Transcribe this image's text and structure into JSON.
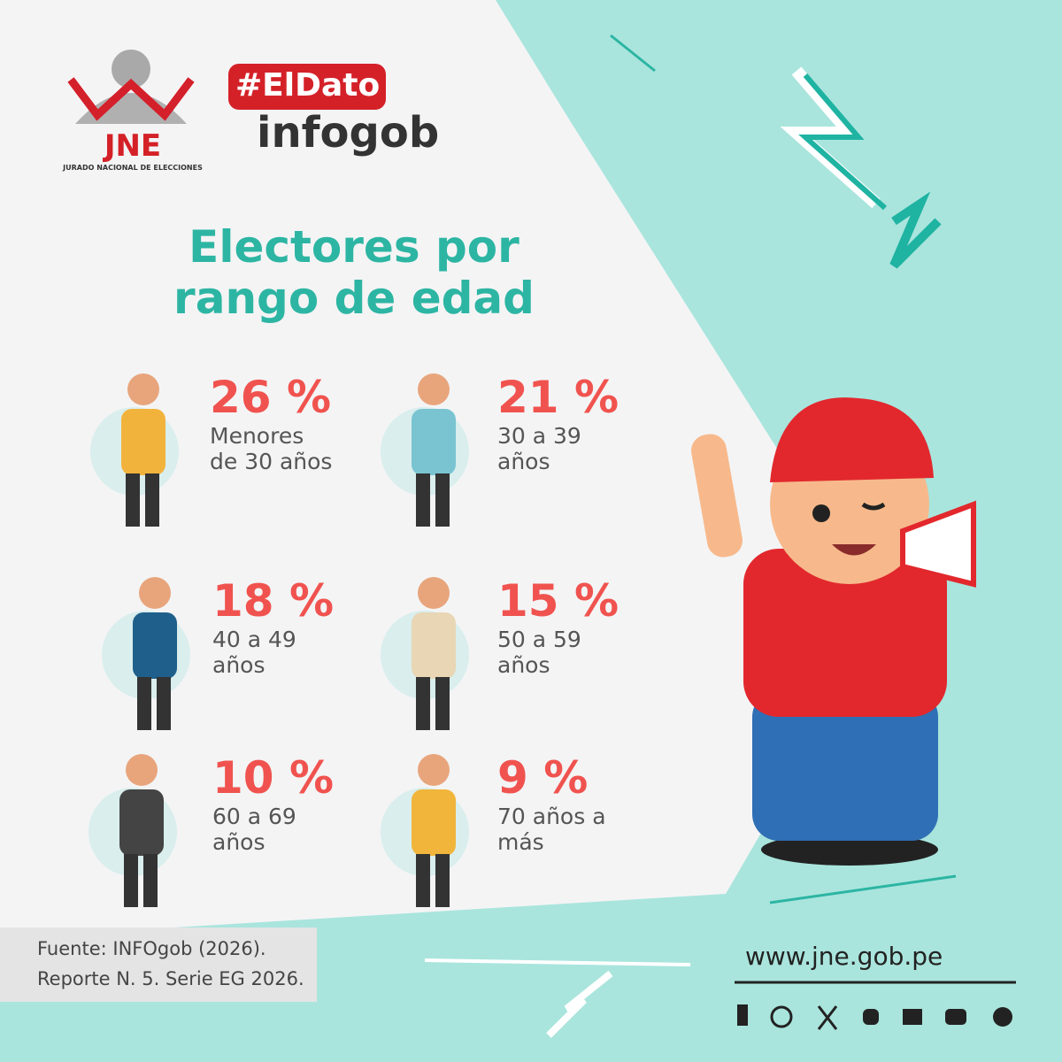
{
  "header": {
    "logo_text": "JNE",
    "logo_subtitle": "JURADO NACIONAL DE ELECCIONES",
    "tag": "#ElDato",
    "brand": "infogob"
  },
  "title": {
    "line1": "Electores por",
    "line2": "rango de edad"
  },
  "items": [
    {
      "percent": "26 %",
      "label": "Menores de 30 años"
    },
    {
      "percent": "21 %",
      "label": "30 a 39 años"
    },
    {
      "percent": "18 %",
      "label": "40 a 49 años"
    },
    {
      "percent": "15 %",
      "label": "50 a 59 años"
    },
    {
      "percent": "10 %",
      "label": "60 a 69 años"
    },
    {
      "percent": "9 %",
      "label": "70 años a más"
    }
  ],
  "footer": {
    "source_line1": "Fuente: INFOgob (2026).",
    "source_line2": "Reporte N. 5. Serie EG 2026.",
    "website": "www.jne.gob.pe"
  }
}
